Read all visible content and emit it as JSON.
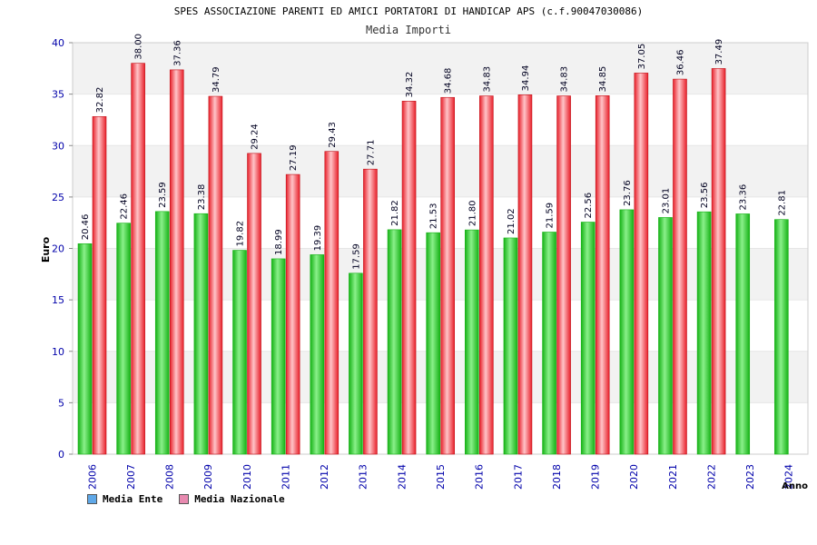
{
  "colors": {
    "ente": "#16b216",
    "ente_light": "#8af08a",
    "naz": "#e8202a",
    "naz_light": "#ffc4c8",
    "axis_text": "#0000aa",
    "legend_ente": "#5fa8e8",
    "legend_naz": "#e88ab0",
    "band": "#f2f2f2"
  },
  "chart_data": {
    "type": "bar",
    "title": "SPES ASSOCIAZIONE PARENTI ED AMICI PORTATORI DI HANDICAP APS (c.f.90047030086)",
    "subtitle": "Media Importi",
    "xlabel": "Anno",
    "ylabel": "Euro",
    "ylim": [
      0,
      40
    ],
    "yticks": [
      0,
      5,
      10,
      15,
      20,
      25,
      30,
      35,
      40
    ],
    "grid": true,
    "legend_position": "bottom-left",
    "categories": [
      "2006",
      "2007",
      "2008",
      "2009",
      "2010",
      "2011",
      "2012",
      "2013",
      "2014",
      "2015",
      "2016",
      "2017",
      "2018",
      "2019",
      "2020",
      "2021",
      "2022",
      "2023",
      "2024"
    ],
    "series": [
      {
        "name": "Media Ente",
        "values": [
          20.46,
          22.46,
          23.59,
          23.38,
          19.82,
          18.99,
          19.39,
          17.59,
          21.82,
          21.53,
          21.8,
          21.02,
          21.59,
          22.56,
          23.76,
          23.01,
          23.56,
          23.36,
          22.81
        ],
        "labels": [
          "20.46",
          "22.46",
          "23.59",
          "23.38",
          "19.82",
          "18.99",
          "19.39",
          "17.59",
          "21.82",
          "21.53",
          "21.80",
          "21.02",
          "21.59",
          "22.56",
          "23.76",
          "23.01",
          "23.56",
          "23.36",
          "22.81"
        ]
      },
      {
        "name": "Media Nazionale",
        "values": [
          32.82,
          38.0,
          37.36,
          34.79,
          29.24,
          27.19,
          29.43,
          27.71,
          34.32,
          34.68,
          34.83,
          34.94,
          34.83,
          34.85,
          37.05,
          36.46,
          37.49,
          null,
          null
        ],
        "labels": [
          "32.82",
          "38.00",
          "37.36",
          "34.79",
          "29.24",
          "27.19",
          "29.43",
          "27.71",
          "34.32",
          "34.68",
          "34.83",
          "34.94",
          "34.83",
          "34.85",
          "37.05",
          "36.46",
          "37.49",
          null,
          null
        ]
      }
    ]
  }
}
